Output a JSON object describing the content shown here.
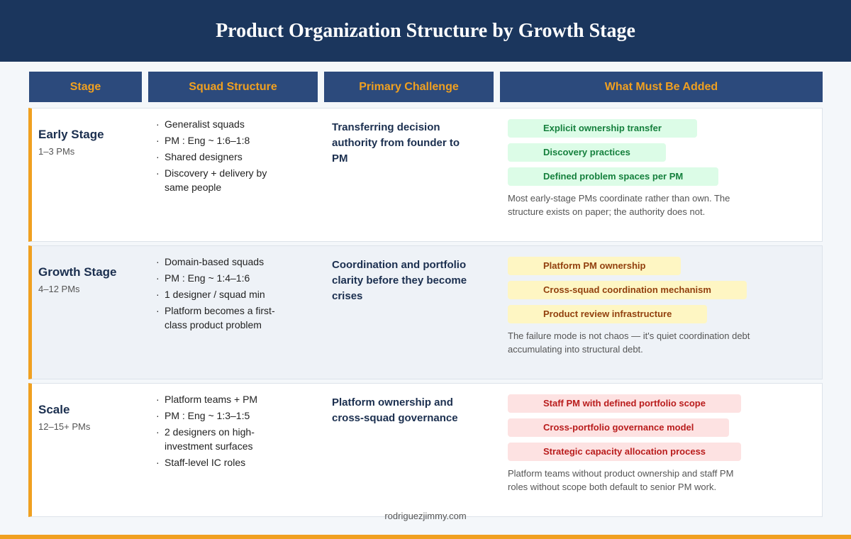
{
  "header": {
    "title": "Product Organization Structure by Growth Stage"
  },
  "table": {
    "columns": [
      "Stage",
      "Squad Structure",
      "Primary Challenge",
      "What Must Be Added"
    ],
    "rows": [
      {
        "stage": "Early Stage",
        "range": "1–3 PMs",
        "squad": [
          "Generalist squads",
          "PM : Eng  ~  1:6–1:8",
          "Shared designers",
          "Discovery + delivery by same people"
        ],
        "challenge": "Transferring decision authority from founder to PM",
        "additions": [
          "Explicit ownership transfer",
          "Discovery practices",
          "Defined problem spaces per PM"
        ],
        "note": "Most early-stage PMs coordinate rather than own. The structure exists on paper; the authority does not."
      },
      {
        "stage": "Growth Stage",
        "range": "4–12 PMs",
        "squad": [
          "Domain-based squads",
          "PM : Eng  ~  1:4–1:6",
          "1 designer / squad min",
          "Platform becomes a first-class product problem"
        ],
        "challenge": "Coordination and portfolio clarity before they become crises",
        "additions": [
          "Platform PM ownership",
          "Cross-squad coordination mechanism",
          "Product review infrastructure"
        ],
        "note": "The failure mode is not chaos — it's quiet coordination debt accumulating into structural debt."
      },
      {
        "stage": "Scale",
        "range": "12–15+ PMs",
        "squad": [
          "Platform teams + PM",
          "PM : Eng  ~  1:3–1:5",
          "2 designers on high-investment surfaces",
          "Staff-level IC roles"
        ],
        "challenge": "Platform ownership and cross-squad governance",
        "additions": [
          "Staff PM with defined portfolio scope",
          "Cross-portfolio governance model",
          "Strategic capacity allocation process"
        ],
        "note": "Platform teams without product ownership and staff PM roles without scope both default to senior PM work."
      }
    ]
  },
  "footer": {
    "text": "rodriguezjimmy.com"
  }
}
